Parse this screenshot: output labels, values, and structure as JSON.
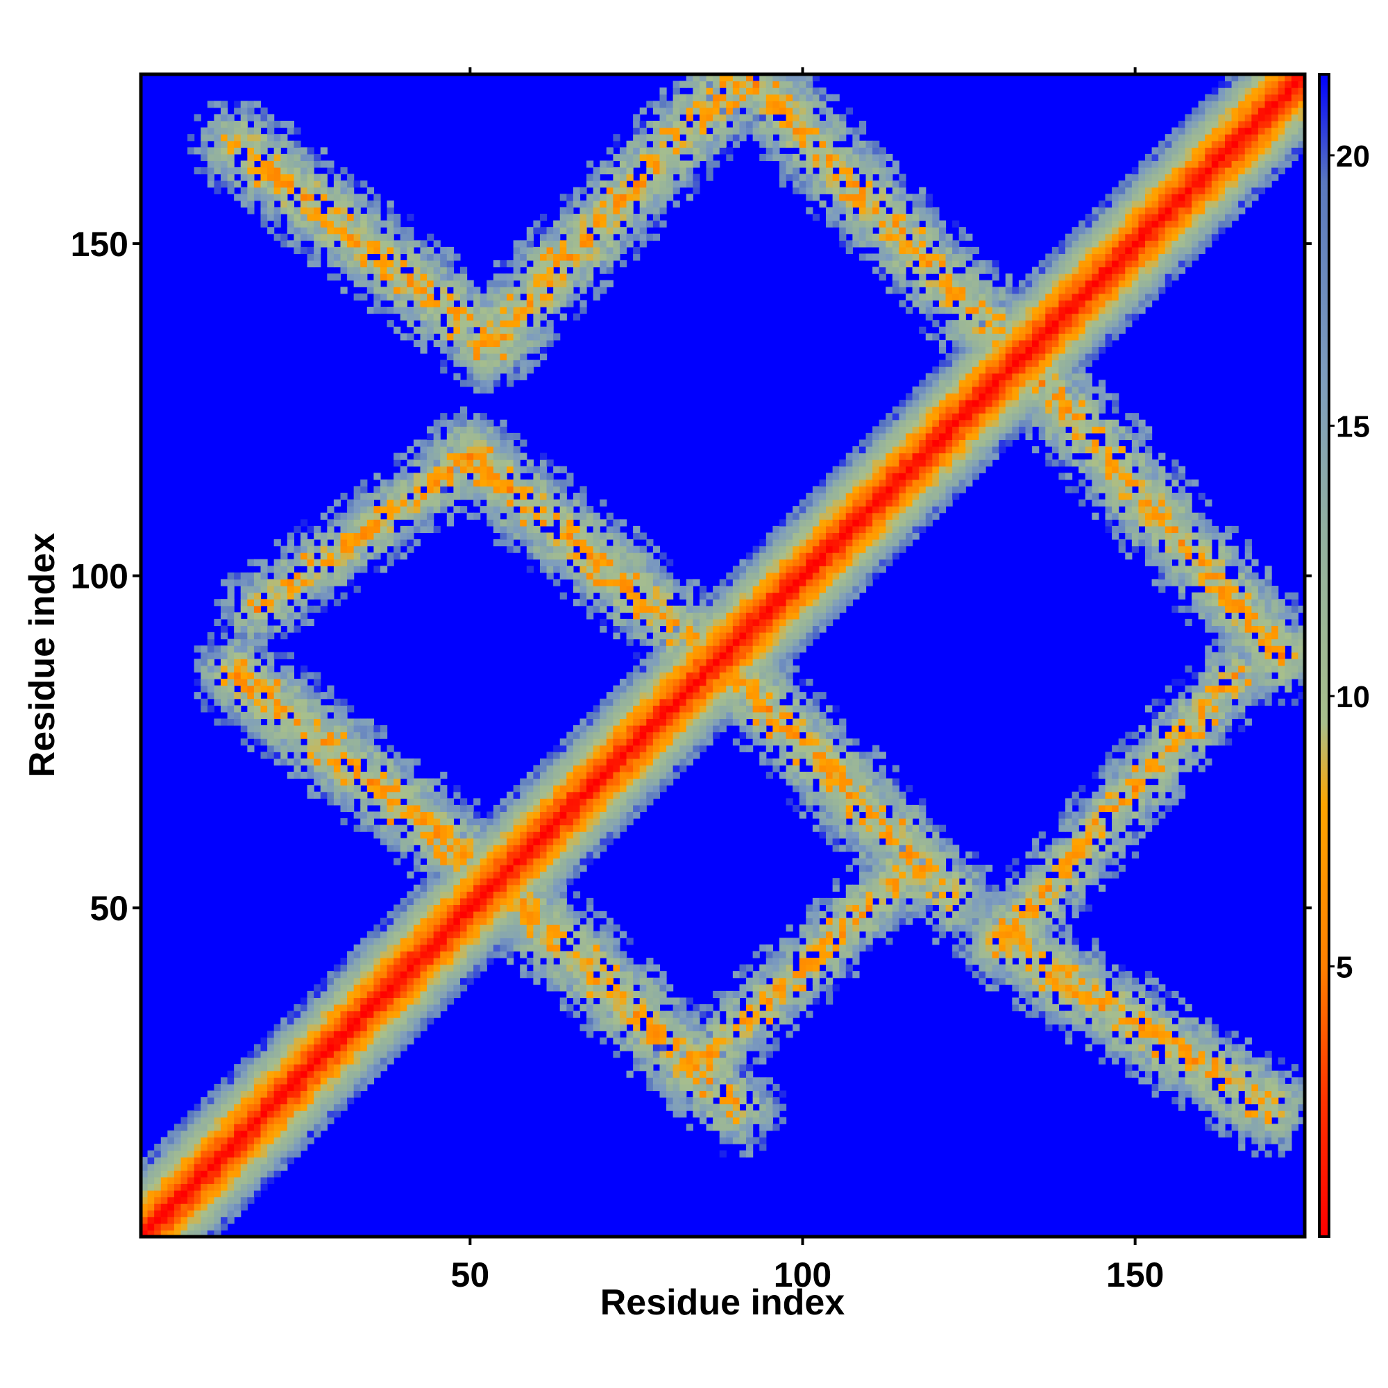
{
  "chart_data": {
    "type": "heatmap",
    "title": "",
    "xlabel": "Residue index",
    "ylabel": "Residue index",
    "xlim": [
      1,
      175
    ],
    "ylim": [
      1,
      175
    ],
    "x_ticks": [
      50,
      100,
      150
    ],
    "y_ticks": [
      50,
      100,
      150
    ],
    "x_tick_labels": [
      "50",
      "100",
      "150"
    ],
    "y_tick_labels": [
      "50",
      "100",
      "150"
    ],
    "grid": false,
    "n_residues": 175,
    "colorbar": {
      "placement": "right",
      "range": [
        0,
        21.5
      ],
      "ticks": [
        5,
        10,
        15,
        20
      ],
      "tick_labels": [
        "5",
        "10",
        "15",
        "20"
      ],
      "stops": [
        {
          "value": 0,
          "color": "#ff0000"
        },
        {
          "value": 2.5,
          "color": "#ff3300"
        },
        {
          "value": 5.0,
          "color": "#ff8000"
        },
        {
          "value": 8.0,
          "color": "#ffa500"
        },
        {
          "value": 9.5,
          "color": "#a8bf8c"
        },
        {
          "value": 13.0,
          "color": "#92b0a0"
        },
        {
          "value": 16.0,
          "color": "#7d9cbf"
        },
        {
          "value": 19.5,
          "color": "#5a78bf"
        },
        {
          "value": 21.5,
          "color": "#0000ff"
        }
      ]
    },
    "background_color": "#0000ff",
    "features": [
      {
        "kind": "diagonal",
        "from": [
          1,
          1
        ],
        "to": [
          175,
          175
        ],
        "width": 13
      },
      {
        "kind": "antidiagonal-band",
        "from": [
          15,
          165
        ],
        "to": [
          53,
          135
        ],
        "width": 11
      },
      {
        "kind": "antidiagonal-band",
        "from": [
          53,
          135
        ],
        "to": [
          91,
          176
        ],
        "width": 11
      },
      {
        "kind": "antidiagonal-band",
        "from": [
          91,
          176
        ],
        "to": [
          135,
          130
        ],
        "width": 11
      },
      {
        "kind": "antidiagonal-band",
        "from": [
          135,
          130
        ],
        "to": [
          172,
          88
        ],
        "width": 11
      },
      {
        "kind": "antidiagonal-band",
        "from": [
          15,
          85
        ],
        "to": [
          53,
          55
        ],
        "width": 11
      },
      {
        "kind": "antidiagonal-band",
        "from": [
          53,
          55
        ],
        "to": [
          90,
          20
        ],
        "width": 11
      },
      {
        "kind": "antidiagonal-band",
        "from": [
          50,
          118
        ],
        "to": [
          90,
          85
        ],
        "width": 11
      },
      {
        "kind": "antidiagonal-band",
        "from": [
          90,
          85
        ],
        "to": [
          122,
          52
        ],
        "width": 11
      },
      {
        "kind": "antidiagonal-band",
        "from": [
          18,
          95
        ],
        "to": [
          50,
          118
        ],
        "width": 9
      },
      {
        "kind": "antidiagonal-band",
        "from": [
          83,
          25
        ],
        "to": [
          115,
          55
        ],
        "width": 9
      },
      {
        "kind": "antidiagonal-band",
        "from": [
          130,
          45
        ],
        "to": [
          170,
          20
        ],
        "width": 11
      },
      {
        "kind": "antidiagonal-band",
        "from": [
          130,
          45
        ],
        "to": [
          165,
          85
        ],
        "width": 9
      }
    ]
  }
}
